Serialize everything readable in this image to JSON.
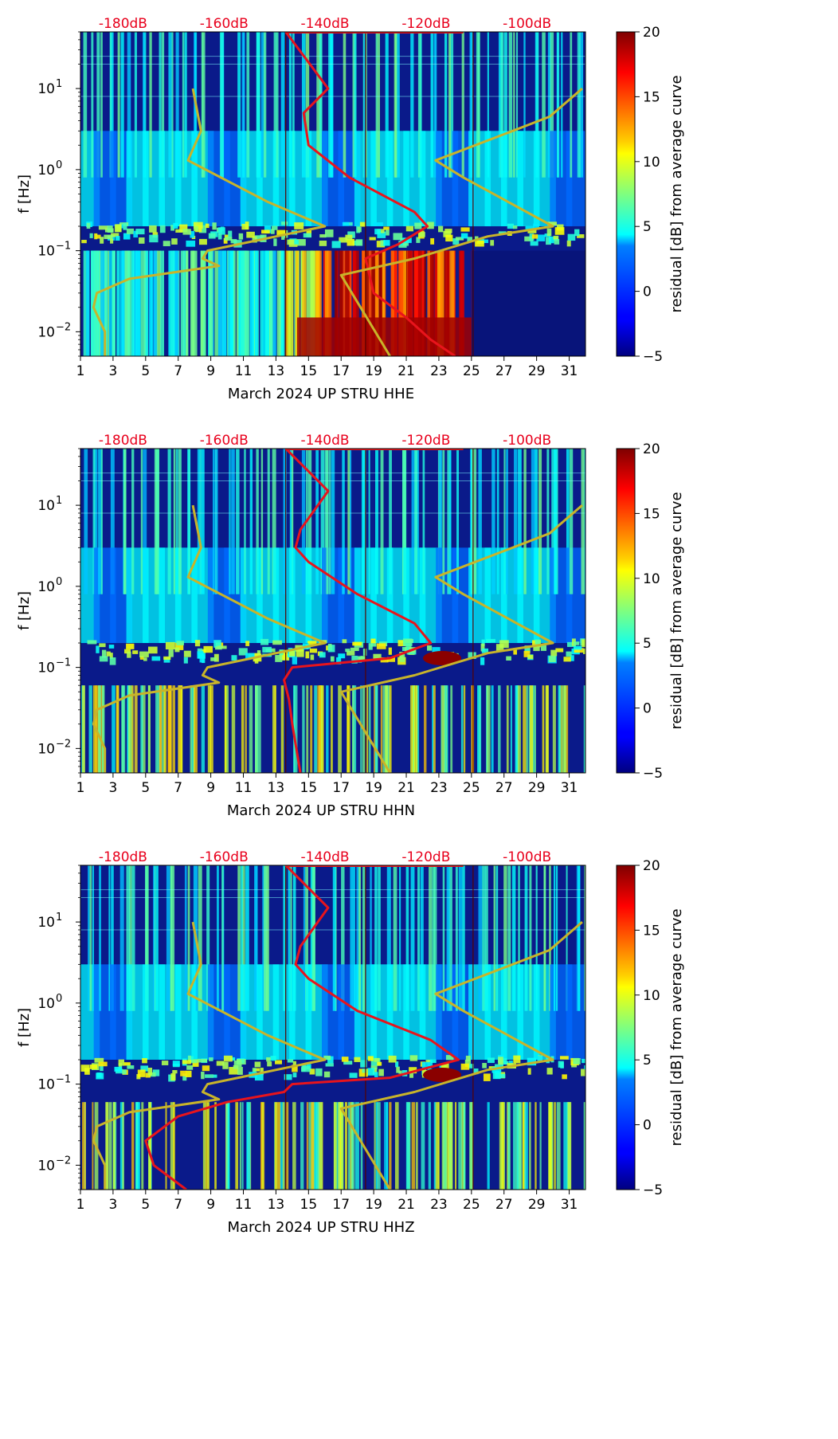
{
  "chart_data": [
    {
      "type": "heatmap",
      "title": "",
      "xlabel": "March 2024 UP STRU  HHE",
      "ylabel": "f [Hz]",
      "x_ticks": [
        "1",
        "3",
        "5",
        "7",
        "9",
        "11",
        "13",
        "15",
        "17",
        "19",
        "21",
        "23",
        "25",
        "27",
        "29",
        "31"
      ],
      "xlim": [
        1,
        32
      ],
      "y_scale": "log",
      "ylim": [
        0.005,
        50
      ],
      "y_ticks": [
        {
          "base": "10",
          "exp": "1"
        },
        {
          "base": "10",
          "exp": "0"
        },
        {
          "base": "10",
          "exp": "−1"
        },
        {
          "base": "10",
          "exp": "−2"
        }
      ],
      "top_ticks": [
        "-180dB",
        "-160dB",
        "-140dB",
        "-120dB",
        "-100dB"
      ],
      "colorbar": {
        "label": "residual [dB] from average curve",
        "ticks": [
          "−5",
          "0",
          "5",
          "10",
          "15",
          "20"
        ],
        "min": -5,
        "max": 20
      },
      "series": [
        {
          "color": "#e8141c",
          "description_points": [
            [
              13.6,
              50
            ],
            [
              16.2,
              10
            ],
            [
              14.7,
              5
            ],
            [
              15.0,
              2
            ],
            [
              17.5,
              0.8
            ],
            [
              21.5,
              0.3
            ],
            [
              22.3,
              0.2
            ],
            [
              20.5,
              0.12
            ],
            [
              18.5,
              0.08
            ],
            [
              19.0,
              0.03
            ],
            [
              21.0,
              0.015
            ],
            [
              22.5,
              0.008
            ],
            [
              24.0,
              0.005
            ]
          ]
        },
        {
          "color": "#c8b42a",
          "description_points": [
            [
              7.9,
              10
            ],
            [
              8.4,
              3
            ],
            [
              7.6,
              1.3
            ],
            [
              12.5,
              0.4
            ],
            [
              16.0,
              0.2
            ],
            [
              8.8,
              0.1
            ],
            [
              8.5,
              0.08
            ],
            [
              9.5,
              0.065
            ],
            [
              4.0,
              0.045
            ],
            [
              2.0,
              0.03
            ],
            [
              1.8,
              0.02
            ],
            [
              2.5,
              0.01
            ],
            [
              2.5,
              0.005
            ]
          ]
        },
        {
          "color": "#c8b42a",
          "description_points": [
            [
              31.8,
              10
            ],
            [
              29.8,
              4.5
            ],
            [
              26.5,
              2.5
            ],
            [
              22.8,
              1.3
            ],
            [
              24.5,
              0.8
            ],
            [
              30.0,
              0.2
            ],
            [
              26.0,
              0.15
            ],
            [
              21.5,
              0.08
            ],
            [
              17.0,
              0.05
            ],
            [
              20.0,
              0.005
            ]
          ]
        }
      ]
    },
    {
      "type": "heatmap",
      "title": "",
      "xlabel": "March 2024 UP STRU  HHN",
      "ylabel": "f [Hz]",
      "x_ticks": [
        "1",
        "3",
        "5",
        "7",
        "9",
        "11",
        "13",
        "15",
        "17",
        "19",
        "21",
        "23",
        "25",
        "27",
        "29",
        "31"
      ],
      "xlim": [
        1,
        32
      ],
      "y_scale": "log",
      "ylim": [
        0.005,
        50
      ],
      "y_ticks": [
        {
          "base": "10",
          "exp": "1"
        },
        {
          "base": "10",
          "exp": "0"
        },
        {
          "base": "10",
          "exp": "−1"
        },
        {
          "base": "10",
          "exp": "−2"
        }
      ],
      "top_ticks": [
        "-180dB",
        "-160dB",
        "-140dB",
        "-120dB",
        "-100dB"
      ],
      "colorbar": {
        "label": "residual [dB] from average curve",
        "ticks": [
          "−5",
          "0",
          "5",
          "10",
          "15",
          "20"
        ],
        "min": -5,
        "max": 20
      },
      "series": [
        {
          "color": "#e8141c",
          "description_points": [
            [
              13.6,
              50
            ],
            [
              16.2,
              15
            ],
            [
              14.5,
              5
            ],
            [
              14.2,
              3
            ],
            [
              15.0,
              2
            ],
            [
              18.0,
              0.8
            ],
            [
              21.5,
              0.35
            ],
            [
              22.5,
              0.2
            ],
            [
              20.0,
              0.13
            ],
            [
              14.0,
              0.1
            ],
            [
              13.5,
              0.07
            ],
            [
              13.8,
              0.04
            ],
            [
              14.0,
              0.02
            ],
            [
              14.5,
              0.005
            ]
          ]
        },
        {
          "color": "#c8b42a",
          "description_points": [
            [
              7.9,
              10
            ],
            [
              8.4,
              3
            ],
            [
              7.6,
              1.3
            ],
            [
              12.5,
              0.4
            ],
            [
              16.0,
              0.2
            ],
            [
              8.8,
              0.1
            ],
            [
              8.5,
              0.08
            ],
            [
              9.5,
              0.065
            ],
            [
              4.0,
              0.045
            ],
            [
              2.0,
              0.03
            ],
            [
              1.8,
              0.02
            ],
            [
              2.5,
              0.01
            ],
            [
              2.5,
              0.005
            ]
          ]
        },
        {
          "color": "#c8b42a",
          "description_points": [
            [
              31.8,
              10
            ],
            [
              29.8,
              4.5
            ],
            [
              26.5,
              2.5
            ],
            [
              22.8,
              1.3
            ],
            [
              24.5,
              0.8
            ],
            [
              30.0,
              0.2
            ],
            [
              26.0,
              0.15
            ],
            [
              21.5,
              0.08
            ],
            [
              17.0,
              0.05
            ],
            [
              20.0,
              0.005
            ]
          ]
        }
      ]
    },
    {
      "type": "heatmap",
      "title": "",
      "xlabel": "March 2024 UP STRU  HHZ",
      "ylabel": "f [Hz]",
      "x_ticks": [
        "1",
        "3",
        "5",
        "7",
        "9",
        "11",
        "13",
        "15",
        "17",
        "19",
        "21",
        "23",
        "25",
        "27",
        "29",
        "31"
      ],
      "xlim": [
        1,
        32
      ],
      "y_scale": "log",
      "ylim": [
        0.005,
        50
      ],
      "y_ticks": [
        {
          "base": "10",
          "exp": "1"
        },
        {
          "base": "10",
          "exp": "0"
        },
        {
          "base": "10",
          "exp": "−1"
        },
        {
          "base": "10",
          "exp": "−2"
        }
      ],
      "top_ticks": [
        "-180dB",
        "-160dB",
        "-140dB",
        "-120dB",
        "-100dB"
      ],
      "colorbar": {
        "label": "residual [dB] from average curve",
        "ticks": [
          "−5",
          "0",
          "5",
          "10",
          "15",
          "20"
        ],
        "min": -5,
        "max": 20
      },
      "series": [
        {
          "color": "#e8141c",
          "description_points": [
            [
              13.6,
              50
            ],
            [
              16.2,
              15
            ],
            [
              14.5,
              5
            ],
            [
              14.2,
              3
            ],
            [
              15.0,
              2
            ],
            [
              18.0,
              0.8
            ],
            [
              22.5,
              0.35
            ],
            [
              24.2,
              0.2
            ],
            [
              20.0,
              0.12
            ],
            [
              14.0,
              0.1
            ],
            [
              13.5,
              0.08
            ],
            [
              10.0,
              0.06
            ],
            [
              7.0,
              0.04
            ],
            [
              5.0,
              0.02
            ],
            [
              5.5,
              0.01
            ],
            [
              7.5,
              0.005
            ]
          ]
        },
        {
          "color": "#c8b42a",
          "description_points": [
            [
              7.9,
              10
            ],
            [
              8.4,
              3
            ],
            [
              7.6,
              1.3
            ],
            [
              12.5,
              0.4
            ],
            [
              16.0,
              0.2
            ],
            [
              8.8,
              0.1
            ],
            [
              8.5,
              0.08
            ],
            [
              9.5,
              0.065
            ],
            [
              4.0,
              0.045
            ],
            [
              2.0,
              0.03
            ],
            [
              1.8,
              0.02
            ],
            [
              2.5,
              0.01
            ],
            [
              2.5,
              0.005
            ]
          ]
        },
        {
          "color": "#c8b42a",
          "description_points": [
            [
              31.8,
              10
            ],
            [
              29.8,
              4.5
            ],
            [
              26.5,
              2.5
            ],
            [
              22.8,
              1.3
            ],
            [
              24.5,
              0.8
            ],
            [
              30.0,
              0.2
            ],
            [
              26.0,
              0.15
            ],
            [
              21.5,
              0.08
            ],
            [
              17.0,
              0.05
            ],
            [
              20.0,
              0.005
            ]
          ]
        }
      ]
    }
  ]
}
